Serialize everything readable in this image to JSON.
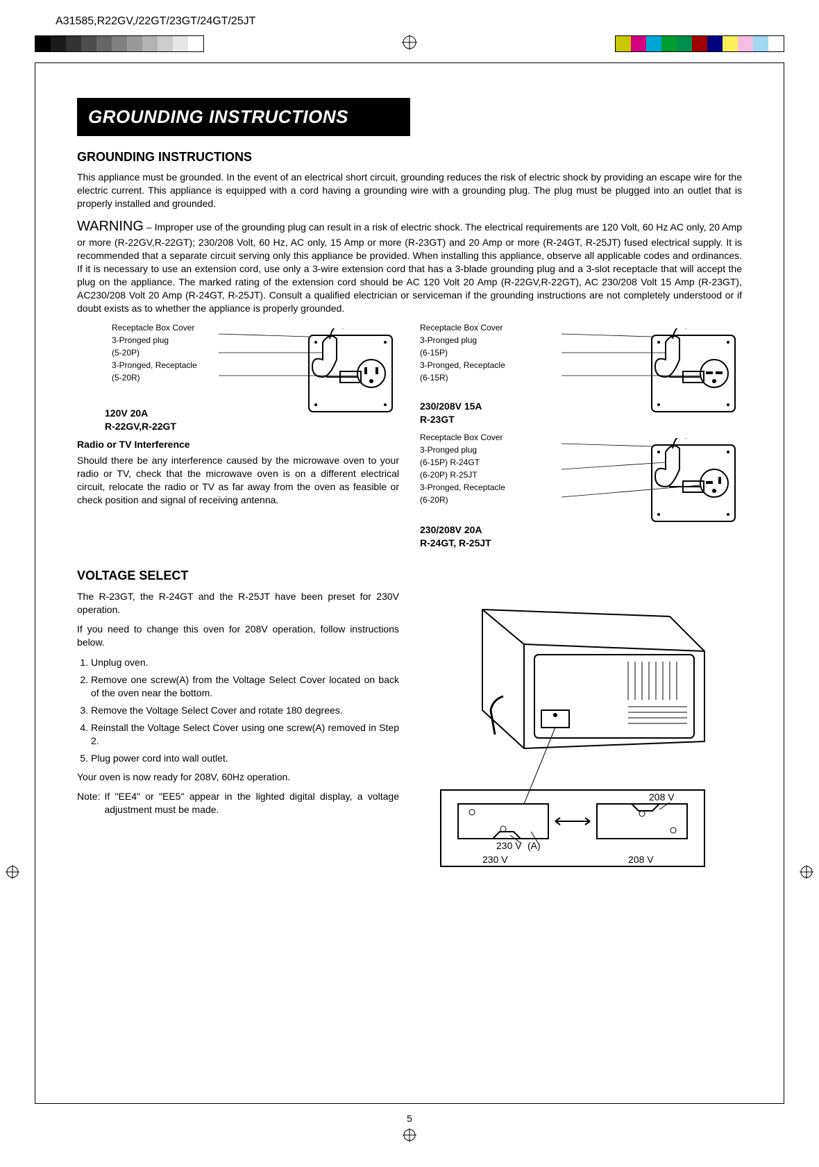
{
  "header": {
    "model_code": "A31585,R22GV,/22GT/23GT/24GT/25JT"
  },
  "gray_swatch_colors": [
    "#000000",
    "#1a1a1a",
    "#333333",
    "#4d4d4d",
    "#666666",
    "#808080",
    "#999999",
    "#b3b3b3",
    "#cccccc",
    "#e6e6e6",
    "#ffffff"
  ],
  "color_swatch_colors": [
    "#c9c700",
    "#d4007f",
    "#00a6d6",
    "#009e2f",
    "#008f4c",
    "#a00000",
    "#000080",
    "#f7f05a",
    "#f5bde1",
    "#9fd8f0",
    "#ffffff"
  ],
  "title_bar": "GROUNDING INSTRUCTIONS",
  "sections": {
    "grounding_heading": "GROUNDING INSTRUCTIONS",
    "grounding_text": "This appliance must be grounded. In the event of an electrical short circuit, grounding reduces the risk of electric shock by providing an escape wire for the electric current. This appliance is equipped with a cord having a grounding wire with a grounding plug. The plug must be plugged into an outlet that is properly installed and grounded.",
    "warning_word": "WARNING",
    "warning_text": " – Improper use of the grounding plug can result in a risk of electric shock. The electrical requirements are 120 Volt, 60 Hz AC only, 20 Amp or more (R-22GV,R-22GT); 230/208 Volt, 60 Hz, AC only, 15 Amp or more (R-23GT) and 20 Amp or more (R-24GT, R-25JT) fused electrical supply. It is recommended that a separate circuit serving only this appliance be provided. When installing this appliance, observe all applicable codes and ordinances. If it is necessary to use an extension cord, use only a 3-wire extension cord that has a 3-blade grounding plug and a 3-slot receptacle that will accept the plug on the appliance. The marked rating of the extension cord should be AC 120 Volt 20 Amp (R-22GV,R-22GT), AC 230/208 Volt 15 Amp (R-23GT), AC230/208 Volt 20 Amp (R-24GT, R-25JT). Consult a qualified electrician or serviceman if the grounding instructions are not completely understood or if doubt exists as to whether the appliance is properly grounded.",
    "radio_heading": "Radio or TV Interference",
    "radio_text": "Should there be any interference caused by the microwave oven to your radio or TV, check that the microwave oven is on a different electrical circuit, relocate the radio or TV as far away from the oven as feasible or check position and signal of receiving antenna.",
    "voltage_heading": "VOLTAGE SELECT",
    "voltage_intro1": "The R-23GT, the R-24GT and the R-25JT have been preset for 230V operation.",
    "voltage_intro2": "If you need to change this oven for 208V operation, follow instructions below.",
    "voltage_steps": [
      "Unplug oven.",
      "Remove one screw(A) from the Voltage Select Cover located on back of the oven near the bottom.",
      "Remove the Voltage Select Cover and rotate 180 degrees.",
      "Reinstall the Voltage Select Cover using one screw(A) removed in Step 2.",
      "Plug power cord into wall outlet."
    ],
    "voltage_done": "Your oven is now ready for 208V, 60Hz operation.",
    "voltage_note_label": "Note:",
    "voltage_note": "If \"EE4\" or \"EE5\" appear in the lighted digital display, a voltage adjustment must be made."
  },
  "receptacles": [
    {
      "labels": {
        "box": "Receptacle Box Cover",
        "plug": "3-Pronged plug\n(5-20P)",
        "recept": "3-Pronged, Receptacle\n(5-20R)"
      },
      "caption": "120V 20A\nR-22GV,R-22GT"
    },
    {
      "labels": {
        "box": "Receptacle Box Cover",
        "plug": "3-Pronged plug\n(6-15P)",
        "recept": "3-Pronged, Receptacle\n(6-15R)"
      },
      "caption": "230/208V 15A\nR-23GT"
    },
    {
      "labels": {
        "box": "Receptacle Box Cover",
        "plug": "3-Pronged plug\n(6-15P) R-24GT\n(6-20P) R-25JT",
        "recept": "3-Pronged, Receptacle\n(6-20R)"
      },
      "caption": "230/208V 20A\nR-24GT, R-25JT"
    }
  ],
  "voltage_figure": {
    "labels": {
      "v208_top": "208 V",
      "v230_mid": "230 V",
      "a_mid": "(A)",
      "v230_bot": "230 V",
      "v208_bot": "208 V"
    }
  },
  "page_number": "5"
}
